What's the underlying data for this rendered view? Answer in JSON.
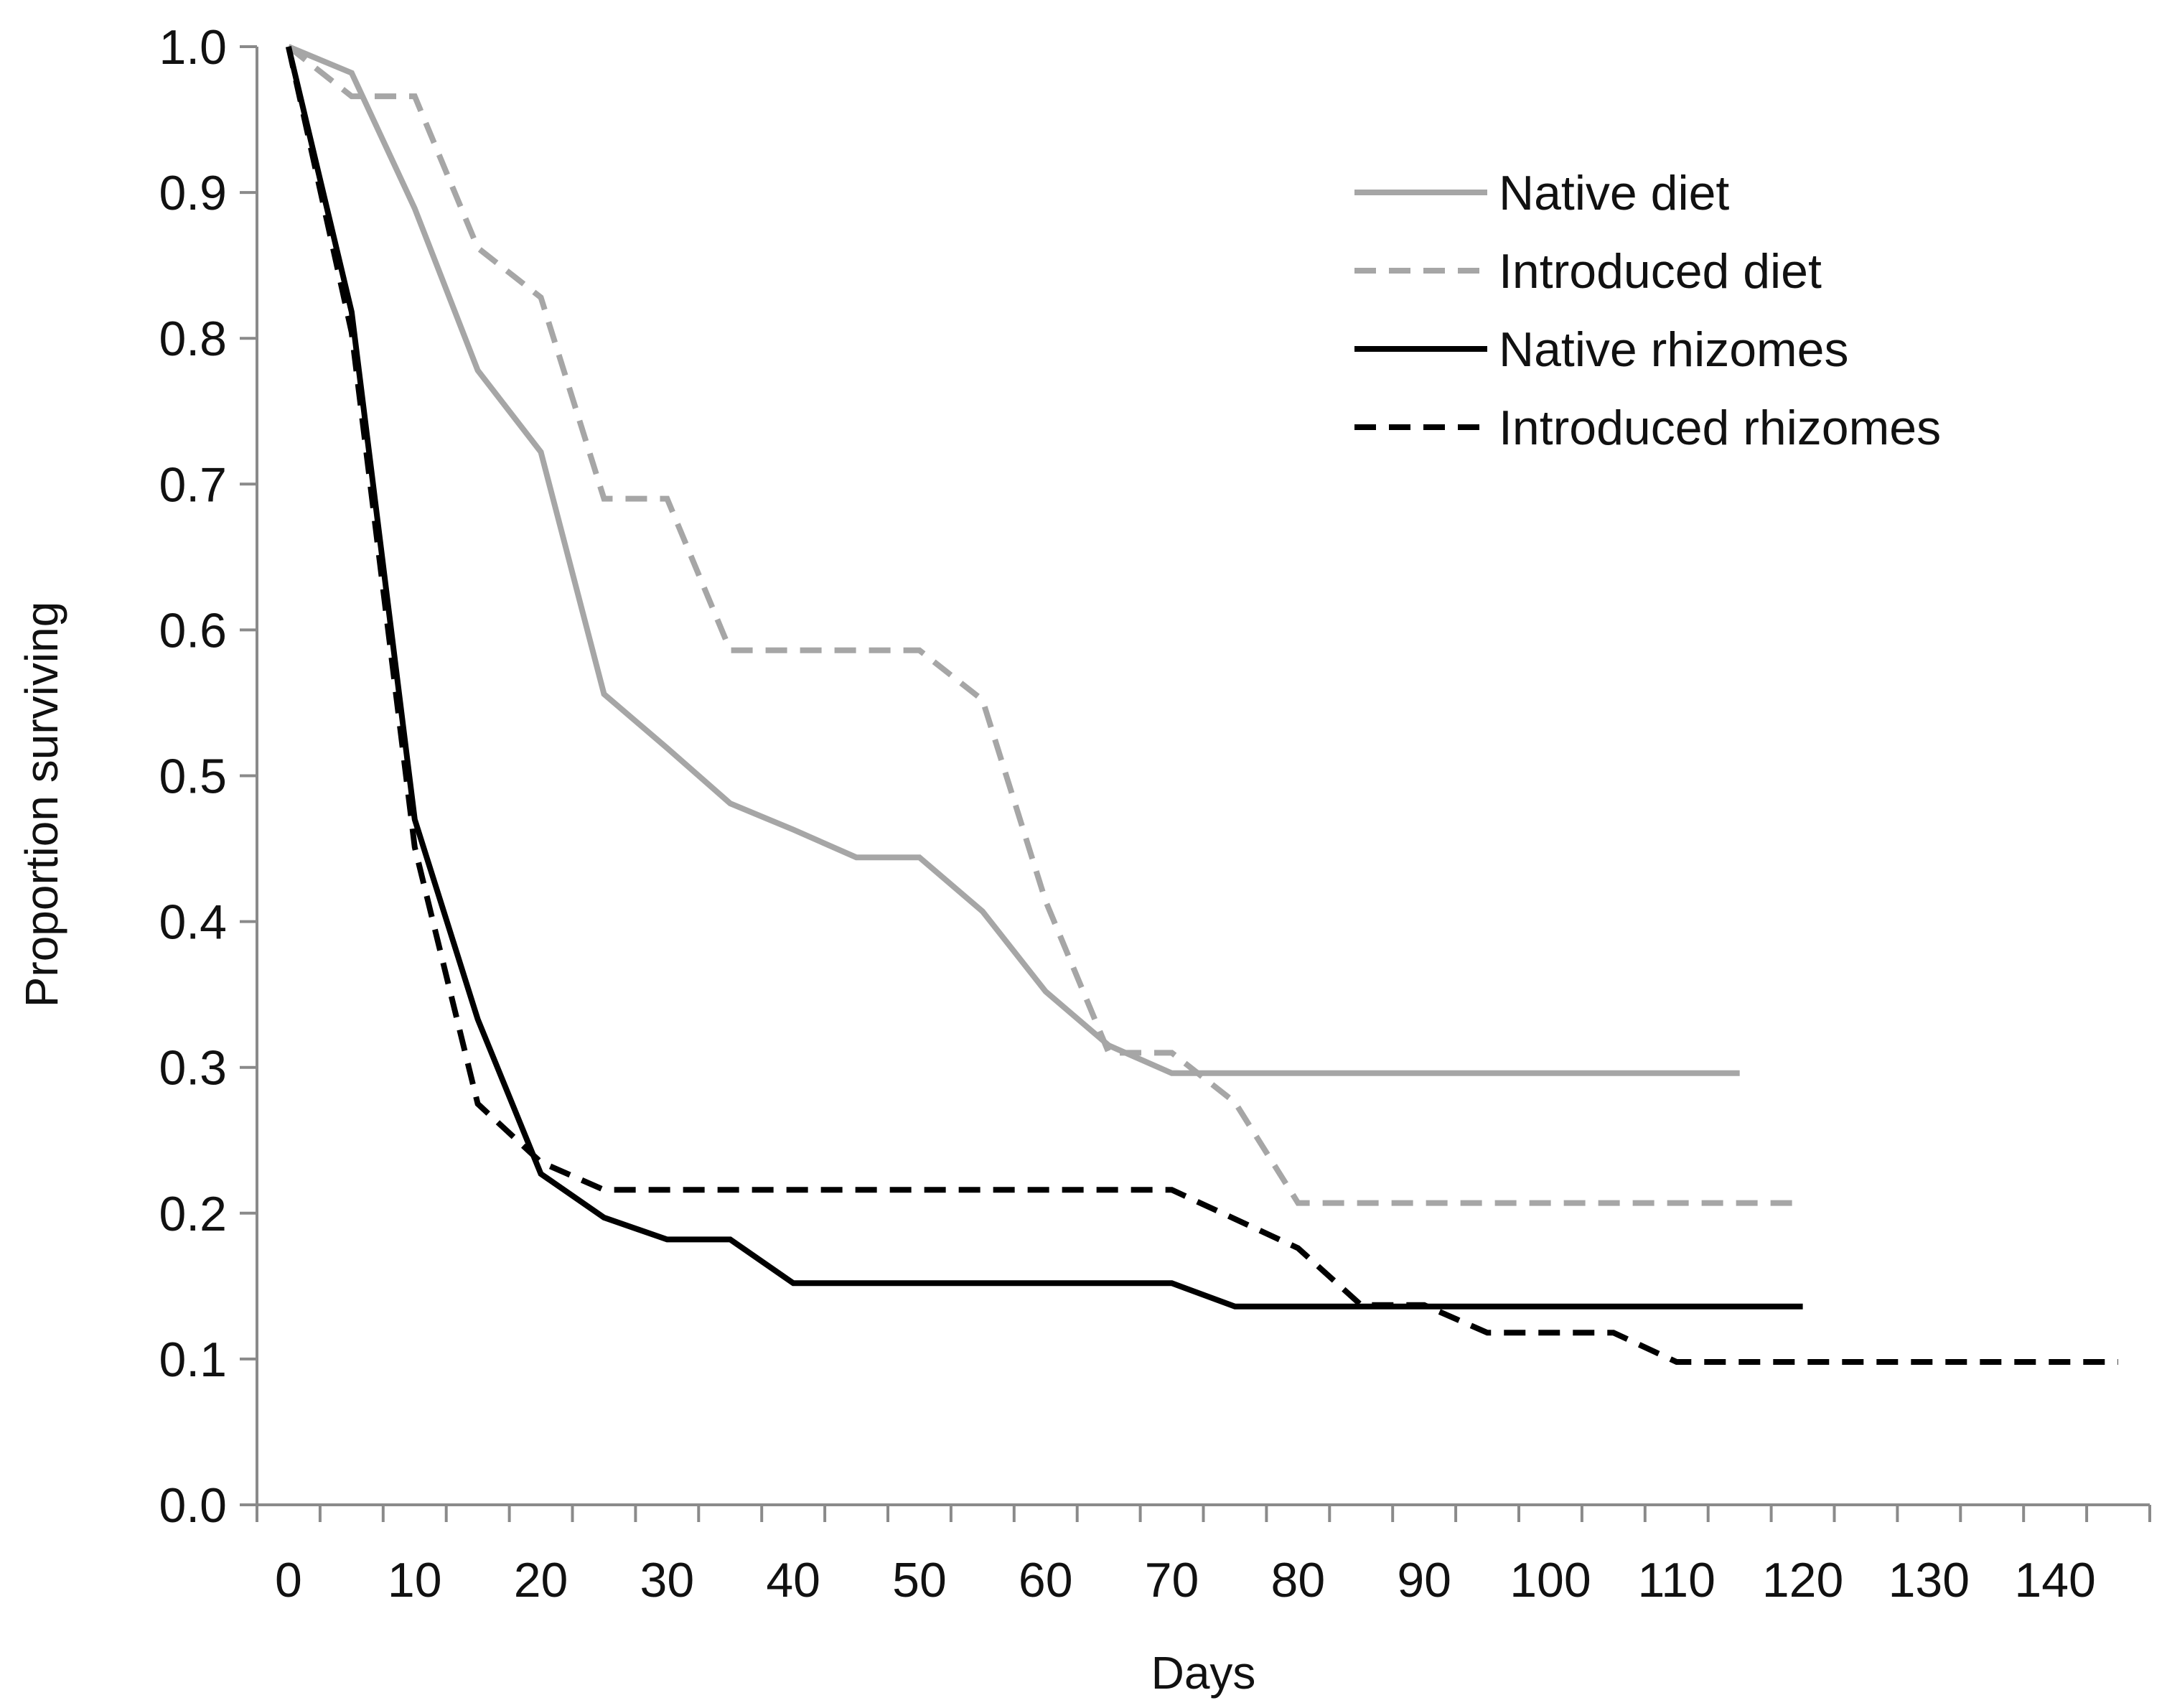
{
  "chart_data": {
    "type": "line",
    "title": "",
    "xlabel": "Days",
    "ylabel": "Proportion surviving",
    "xlim": [
      -2.5,
      147.5
    ],
    "ylim": [
      0,
      1.0
    ],
    "xticks": [
      0,
      10,
      20,
      30,
      40,
      50,
      60,
      70,
      80,
      90,
      100,
      110,
      120,
      130,
      140
    ],
    "xtick_labels": [
      "0",
      "10",
      "20",
      "30",
      "40",
      "50",
      "60",
      "70",
      "80",
      "90",
      "100",
      "110",
      "120",
      "130",
      "140"
    ],
    "yticks": [
      0.0,
      0.1,
      0.2,
      0.3,
      0.4,
      0.5,
      0.6,
      0.7,
      0.8,
      0.9,
      1.0
    ],
    "ytick_labels": [
      "0.0",
      "0.1",
      "0.2",
      "0.3",
      "0.4",
      "0.5",
      "0.6",
      "0.7",
      "0.8",
      "0.9",
      "1.0"
    ],
    "grid": false,
    "legend_position": "top-right",
    "series": [
      {
        "name": "Native diet",
        "color": "#a6a6a6",
        "dash": "solid",
        "x": [
          0,
          5,
          10,
          15,
          20,
          25,
          30,
          35,
          40,
          45,
          50,
          55,
          60,
          65,
          70,
          75,
          80,
          85,
          90,
          95,
          100,
          105,
          110,
          115
        ],
        "y": [
          1.0,
          0.982,
          0.889,
          0.778,
          0.722,
          0.556,
          0.519,
          0.481,
          0.463,
          0.444,
          0.444,
          0.407,
          0.352,
          0.315,
          0.296,
          0.296,
          0.296,
          0.296,
          0.296,
          0.296,
          0.296,
          0.296,
          0.296,
          0.296
        ]
      },
      {
        "name": "Introduced diet",
        "color": "#a6a6a6",
        "dash": "dashed",
        "x": [
          0,
          5,
          10,
          15,
          20,
          25,
          30,
          35,
          40,
          45,
          50,
          55,
          60,
          65,
          70,
          75,
          80,
          85,
          90,
          95,
          100,
          105,
          110,
          115,
          120
        ],
        "y": [
          1.0,
          0.966,
          0.966,
          0.862,
          0.828,
          0.69,
          0.69,
          0.586,
          0.586,
          0.586,
          0.586,
          0.552,
          0.414,
          0.31,
          0.31,
          0.276,
          0.207,
          0.207,
          0.207,
          0.207,
          0.207,
          0.207,
          0.207,
          0.207,
          0.207
        ]
      },
      {
        "name": "Native rhizomes",
        "color": "#000000",
        "dash": "solid",
        "x": [
          0,
          5,
          10,
          15,
          20,
          25,
          30,
          35,
          40,
          45,
          50,
          55,
          60,
          65,
          70,
          75,
          80,
          85,
          90,
          95,
          100,
          105,
          110,
          115,
          120
        ],
        "y": [
          1.0,
          0.818,
          0.47,
          0.333,
          0.227,
          0.197,
          0.182,
          0.182,
          0.152,
          0.152,
          0.152,
          0.152,
          0.152,
          0.152,
          0.152,
          0.136,
          0.136,
          0.136,
          0.136,
          0.136,
          0.136,
          0.136,
          0.136,
          0.136,
          0.136
        ]
      },
      {
        "name": "Introduced rhizomes",
        "color": "#000000",
        "dash": "dashed",
        "x": [
          0,
          5,
          10,
          15,
          20,
          25,
          30,
          35,
          40,
          45,
          50,
          55,
          60,
          65,
          70,
          75,
          80,
          85,
          90,
          95,
          100,
          105,
          110,
          115,
          120,
          125,
          130,
          135,
          140,
          145
        ],
        "y": [
          1.0,
          0.804,
          0.451,
          0.275,
          0.235,
          0.216,
          0.216,
          0.216,
          0.216,
          0.216,
          0.216,
          0.216,
          0.216,
          0.216,
          0.216,
          0.196,
          0.176,
          0.137,
          0.137,
          0.118,
          0.118,
          0.118,
          0.098,
          0.098,
          0.098,
          0.098,
          0.098,
          0.098,
          0.098,
          0.098
        ]
      }
    ]
  }
}
